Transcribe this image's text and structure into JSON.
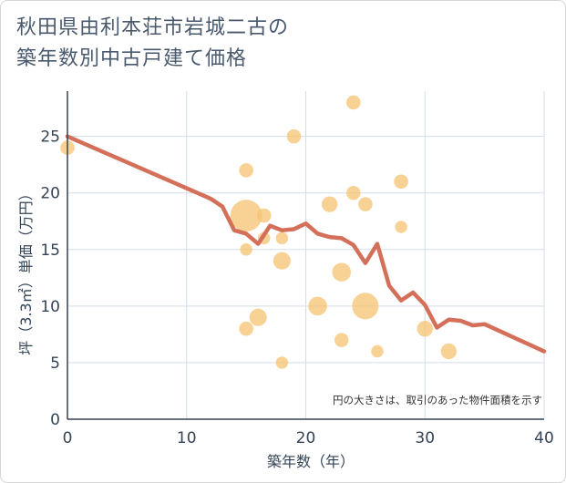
{
  "chart_data": {
    "type": "scatter",
    "title_line1": "秋田県由利本荘市岩城二古の",
    "title_line2": "築年数別中古戸建て価格",
    "xlabel": "築年数（年）",
    "ylabel": "坪（3.3㎡）単価（万円）",
    "xlim": [
      0,
      40
    ],
    "ylim": [
      0,
      29
    ],
    "xticks": [
      "0",
      "10",
      "20",
      "30",
      "40"
    ],
    "yticks": [
      "0",
      "5",
      "10",
      "15",
      "20",
      "25"
    ],
    "note": "円の大きさは、取引のあった物件面積を示す",
    "colors": {
      "bubble": "#f5c272",
      "line": "#d4705a",
      "grid": "#d3dde8"
    },
    "bubbles": [
      {
        "x": 0,
        "y": 24,
        "s": 2
      },
      {
        "x": 15,
        "y": 18,
        "s": 10
      },
      {
        "x": 15,
        "y": 22,
        "s": 2
      },
      {
        "x": 15,
        "y": 15,
        "s": 1.5
      },
      {
        "x": 15,
        "y": 8,
        "s": 2
      },
      {
        "x": 16,
        "y": 9,
        "s": 3
      },
      {
        "x": 16.5,
        "y": 18,
        "s": 2
      },
      {
        "x": 16.5,
        "y": 16,
        "s": 1.5
      },
      {
        "x": 18,
        "y": 14,
        "s": 3
      },
      {
        "x": 18,
        "y": 16,
        "s": 1.5
      },
      {
        "x": 18,
        "y": 5,
        "s": 1.5
      },
      {
        "x": 19,
        "y": 25,
        "s": 2
      },
      {
        "x": 21,
        "y": 10,
        "s": 3.5
      },
      {
        "x": 22,
        "y": 19,
        "s": 2.5
      },
      {
        "x": 23,
        "y": 13,
        "s": 3.5
      },
      {
        "x": 23,
        "y": 7,
        "s": 2
      },
      {
        "x": 24,
        "y": 28,
        "s": 2
      },
      {
        "x": 24,
        "y": 20,
        "s": 2
      },
      {
        "x": 25,
        "y": 19,
        "s": 2
      },
      {
        "x": 25,
        "y": 10,
        "s": 7
      },
      {
        "x": 26,
        "y": 6,
        "s": 1.5
      },
      {
        "x": 28,
        "y": 21,
        "s": 2
      },
      {
        "x": 28,
        "y": 17,
        "s": 1.5
      },
      {
        "x": 30,
        "y": 8,
        "s": 2.5
      },
      {
        "x": 32,
        "y": 6,
        "s": 2.5
      }
    ],
    "trend": {
      "x": [
        0,
        12,
        13,
        14,
        15,
        16,
        17,
        18,
        19,
        20,
        21,
        22,
        23,
        24,
        25,
        26,
        27,
        28,
        29,
        30,
        31,
        32,
        33,
        34,
        35,
        40
      ],
      "y": [
        25,
        19.5,
        18.8,
        16.7,
        16.4,
        15.5,
        17.1,
        16.7,
        16.8,
        17.3,
        16.4,
        16.1,
        16.0,
        15.4,
        13.8,
        15.5,
        11.8,
        10.5,
        11.2,
        10.1,
        8.1,
        8.8,
        8.7,
        8.3,
        8.4,
        6.0
      ]
    }
  }
}
